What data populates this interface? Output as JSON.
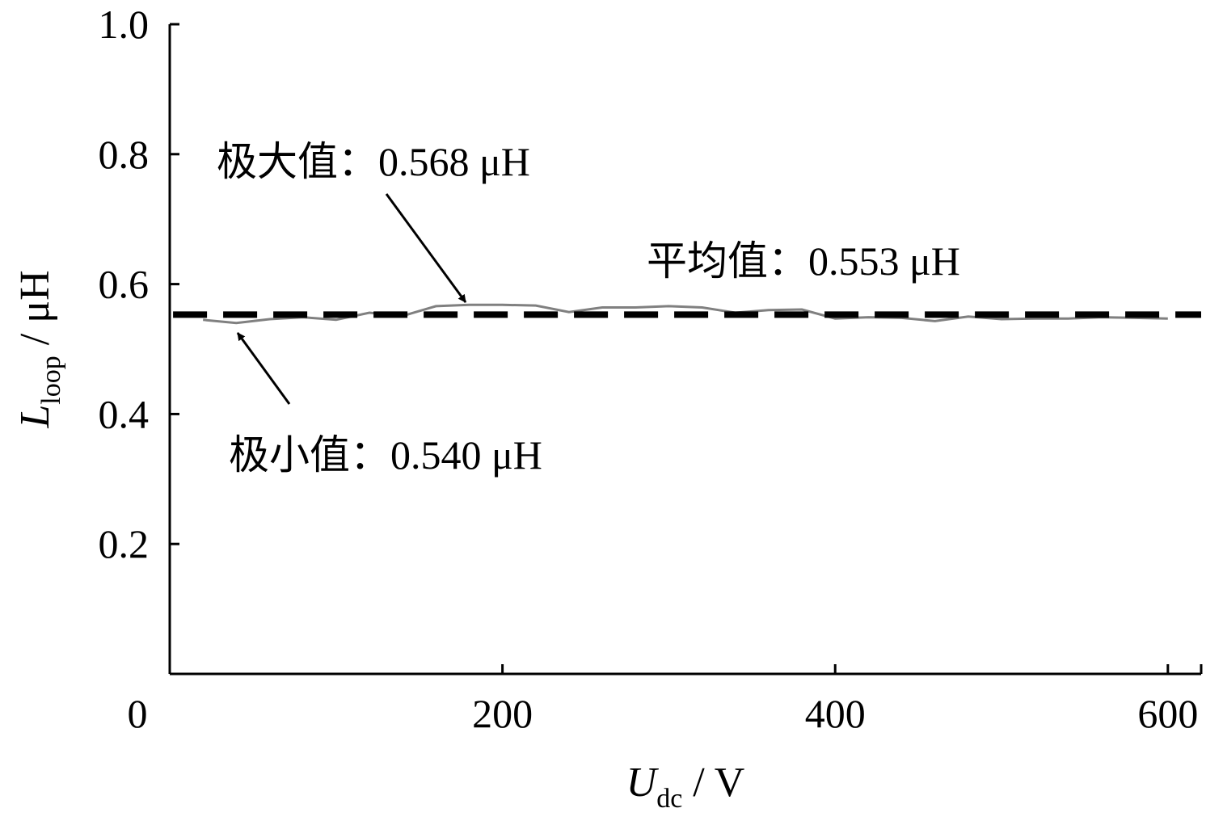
{
  "chart_data": {
    "type": "line",
    "xlabel": {
      "main": "U",
      "sub": "dc",
      "unit": " / V"
    },
    "ylabel": {
      "main": "L",
      "sub": "loop",
      "unit": " / μH"
    },
    "xlim": [
      0,
      620
    ],
    "ylim": [
      0,
      1.0
    ],
    "x_ticks": [
      {
        "value": 0,
        "label": "0"
      },
      {
        "value": 200,
        "label": "200"
      },
      {
        "value": 400,
        "label": "400"
      },
      {
        "value": 600,
        "label": "600"
      }
    ],
    "y_ticks": [
      {
        "value": 0.2,
        "label": "0.2"
      },
      {
        "value": 0.4,
        "label": "0.4"
      },
      {
        "value": 0.6,
        "label": "0.6"
      },
      {
        "value": 0.8,
        "label": "0.8"
      },
      {
        "value": 1.0,
        "label": "1.0"
      }
    ],
    "grid": false,
    "series": [
      {
        "style": "solid",
        "color": "#808080",
        "x": [
          20,
          40,
          60,
          80,
          100,
          120,
          140,
          160,
          180,
          200,
          220,
          240,
          260,
          280,
          300,
          320,
          340,
          360,
          380,
          400,
          420,
          440,
          460,
          480,
          500,
          520,
          540,
          560,
          580,
          600
        ],
        "y": [
          0.545,
          0.54,
          0.546,
          0.549,
          0.545,
          0.556,
          0.551,
          0.566,
          0.568,
          0.568,
          0.567,
          0.557,
          0.564,
          0.564,
          0.566,
          0.564,
          0.556,
          0.56,
          0.561,
          0.547,
          0.549,
          0.548,
          0.543,
          0.55,
          0.546,
          0.547,
          0.547,
          0.549,
          0.548,
          0.547
        ]
      },
      {
        "style": "dashed",
        "color": "#000000",
        "x": [
          0,
          620
        ],
        "y": [
          0.553,
          0.553
        ]
      }
    ],
    "annotations": [
      {
        "text": "极大值：0.568 μH",
        "point": [
          180,
          0.568
        ]
      },
      {
        "text": "平均值：0.553 μH"
      },
      {
        "text": "极小值：0.540 μH",
        "point": [
          40,
          0.54
        ]
      }
    ]
  }
}
